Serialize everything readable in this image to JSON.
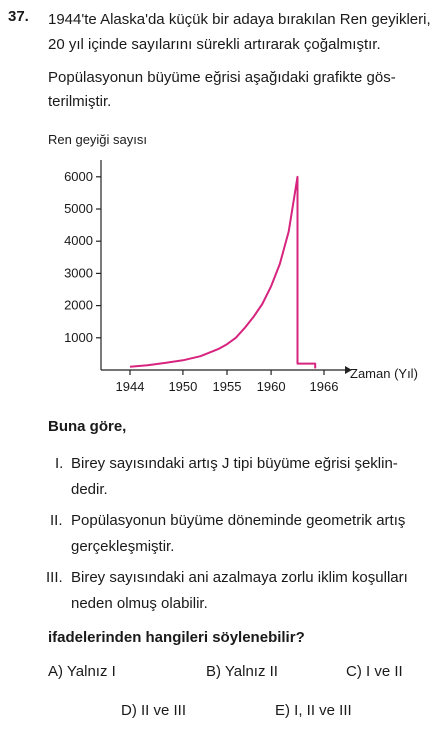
{
  "question": {
    "number": "37.",
    "intro_lines": [
      "1944'te Alaska'da küçük bir adaya bırakılan Ren geyikleri,",
      "20 yıl içinde sayılarını sürekli artırarak çoğalmıştır.",
      "Popülasyonun büyüme eğrisi aşağıdaki grafikte gös-",
      "terilmiştir."
    ],
    "lead": "Buna göre,",
    "statements": [
      {
        "num": "I.",
        "lines": [
          "Birey sayısındaki artış J tipi büyüme eğrisi şeklin-",
          "dedir."
        ]
      },
      {
        "num": "II.",
        "lines": [
          "Popülasyonun büyüme döneminde geometrik artış",
          "gerçekleşmiştir."
        ]
      },
      {
        "num": "III.",
        "lines": [
          "Birey sayısındaki ani azalmaya zorlu iklim koşulları",
          "neden olmuş olabilir."
        ]
      }
    ],
    "prompt": "ifadelerinden hangileri söylenebilir?",
    "options": {
      "A": "A) Yalnız I",
      "B": "B) Yalnız II",
      "C": "C) I ve II",
      "D": "D) II ve III",
      "E": "E) I, II ve III"
    }
  },
  "chart_data": {
    "type": "line",
    "ylabel": "Ren geyiği sayısı",
    "xlabel": "Zaman (Yıl)",
    "x_ticks": [
      "1944",
      "1950",
      "1955",
      "1960",
      "1966"
    ],
    "y_ticks": [
      "1000",
      "2000",
      "3000",
      "4000",
      "5000",
      "6000"
    ],
    "ylim": [
      0,
      6000
    ],
    "series": [
      {
        "color": "#d6247f",
        "x": [
          1944,
          1946,
          1948,
          1950,
          1952,
          1954,
          1955,
          1956,
          1957,
          1958,
          1959,
          1960,
          1961,
          1962,
          1963,
          1963,
          1965,
          1965
        ],
        "y": [
          100,
          150,
          220,
          300,
          430,
          650,
          800,
          1000,
          1300,
          1650,
          2050,
          2600,
          3300,
          4300,
          6000,
          200,
          200,
          50
        ]
      }
    ]
  }
}
